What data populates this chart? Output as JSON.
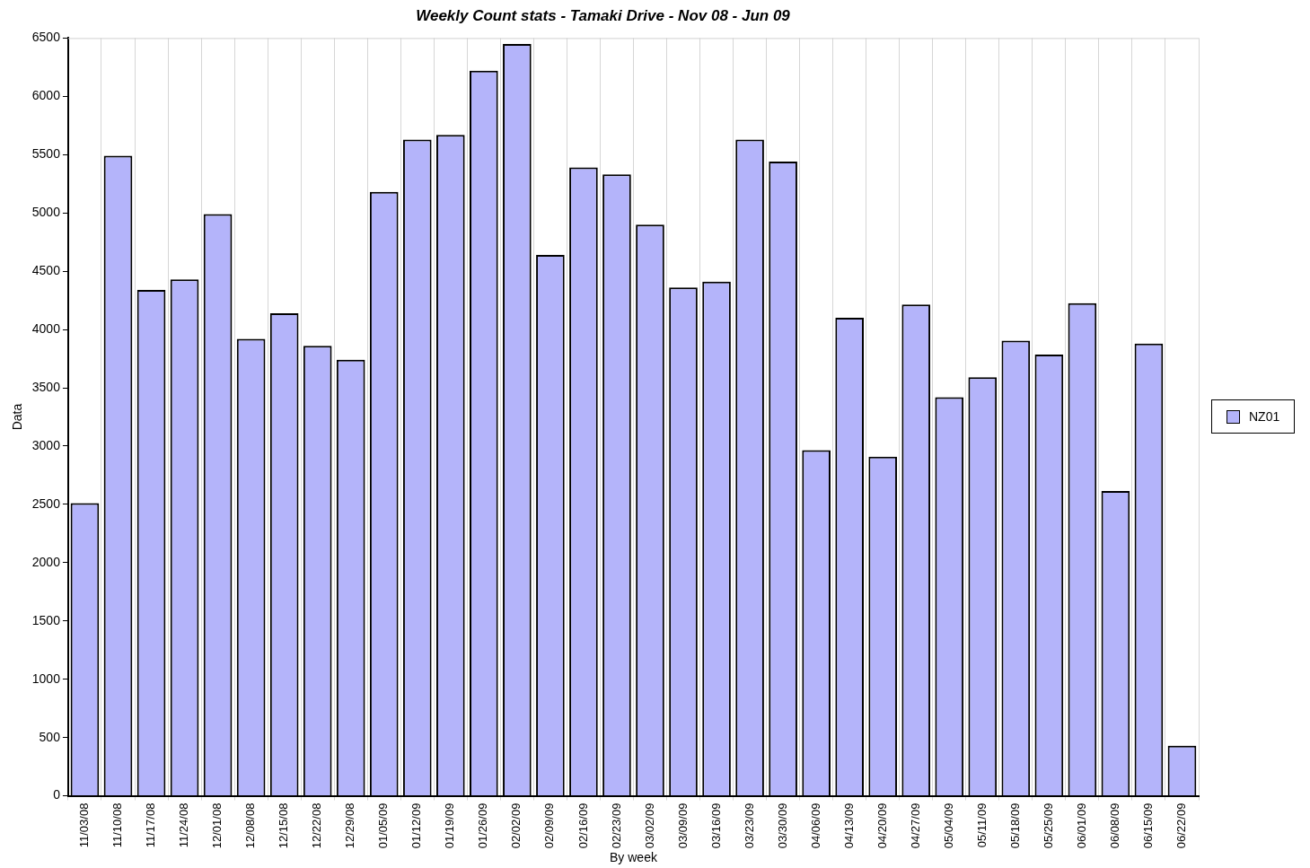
{
  "chart_data": {
    "type": "bar",
    "title": "Weekly Count stats - Tamaki Drive - Nov 08 - Jun 09",
    "xlabel": "By week",
    "ylabel": "Data",
    "categories": [
      "11/03/08",
      "11/10/08",
      "11/17/08",
      "11/24/08",
      "12/01/08",
      "12/08/08",
      "12/15/08",
      "12/22/08",
      "12/29/08",
      "01/05/09",
      "01/12/09",
      "01/19/09",
      "01/26/09",
      "02/02/09",
      "02/09/09",
      "02/16/09",
      "02/23/09",
      "03/02/09",
      "03/09/09",
      "03/16/09",
      "03/23/09",
      "03/30/09",
      "04/06/09",
      "04/13/09",
      "04/20/09",
      "04/27/09",
      "05/04/09",
      "05/11/09",
      "05/18/09",
      "05/25/09",
      "06/01/09",
      "06/08/09",
      "06/15/09",
      "06/22/09"
    ],
    "series": [
      {
        "name": "NZ01",
        "color": "#b4b4fa",
        "values": [
          2510,
          5490,
          4340,
          4430,
          4990,
          3920,
          4140,
          3860,
          3740,
          5180,
          5630,
          5670,
          6220,
          6450,
          4640,
          5390,
          5330,
          4900,
          4360,
          4410,
          5630,
          5440,
          2965,
          4100,
          2910,
          4215,
          3420,
          3590,
          3905,
          3785,
          4225,
          2615,
          3880,
          430
        ]
      }
    ],
    "ylim": [
      0,
      6500
    ],
    "yticks": [
      0,
      500,
      1000,
      1500,
      2000,
      2500,
      3000,
      3500,
      4000,
      4500,
      5000,
      5500,
      6000,
      6500
    ],
    "grid": "x",
    "legend": "right"
  }
}
